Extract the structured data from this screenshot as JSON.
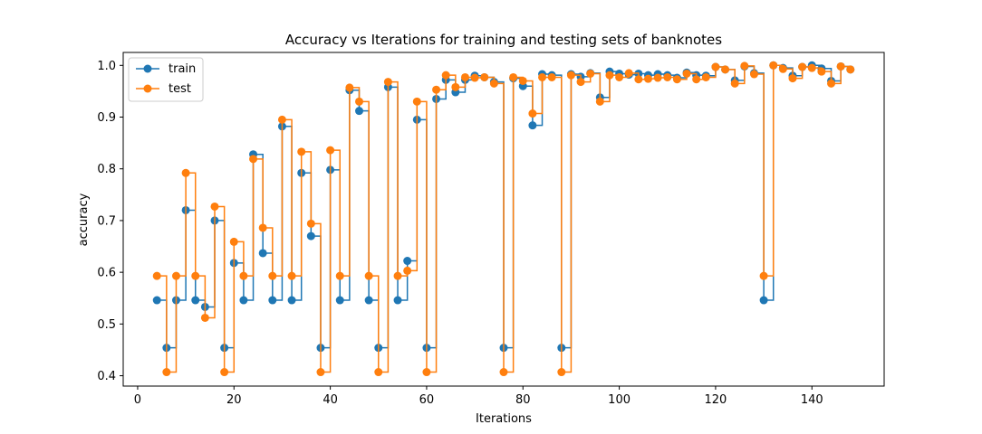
{
  "chart_data": {
    "type": "line",
    "step": "post",
    "title": "Accuracy vs Iterations for training and testing sets of banknotes",
    "xlabel": "Iterations",
    "ylabel": "accuracy",
    "xlim": [
      -3,
      155
    ],
    "ylim": [
      0.38,
      1.025
    ],
    "xticks": [
      0,
      20,
      40,
      60,
      80,
      100,
      120,
      140
    ],
    "yticks": [
      0.4,
      0.5,
      0.6,
      0.7,
      0.8,
      0.9,
      1.0
    ],
    "ytick_labels": [
      "0.4",
      "0.5",
      "0.6",
      "0.7",
      "0.8",
      "0.9",
      "1.0"
    ],
    "legend_position": "top-left",
    "grid": false,
    "x": [
      4,
      6,
      8,
      10,
      12,
      14,
      16,
      18,
      20,
      22,
      24,
      26,
      28,
      30,
      32,
      34,
      36,
      38,
      40,
      42,
      44,
      46,
      48,
      50,
      52,
      54,
      56,
      58,
      60,
      62,
      64,
      66,
      68,
      70,
      72,
      74,
      76,
      78,
      80,
      82,
      84,
      86,
      88,
      90,
      92,
      94,
      96,
      98,
      100,
      102,
      104,
      106,
      108,
      110,
      112,
      114,
      116,
      118,
      120,
      122,
      124,
      126,
      128,
      130,
      132,
      134,
      136,
      138,
      140,
      142,
      144,
      146,
      148
    ],
    "series": [
      {
        "name": "train",
        "color": "#1f77b4",
        "values": [
          0.546,
          0.454,
          0.546,
          0.72,
          0.546,
          0.533,
          0.7,
          0.454,
          0.618,
          0.546,
          0.828,
          0.637,
          0.546,
          0.882,
          0.546,
          0.792,
          0.67,
          0.454,
          0.798,
          0.546,
          0.952,
          0.912,
          0.546,
          0.454,
          0.958,
          0.546,
          0.622,
          0.895,
          0.454,
          0.935,
          0.972,
          0.948,
          0.972,
          0.98,
          0.977,
          0.968,
          0.454,
          0.975,
          0.96,
          0.884,
          0.983,
          0.981,
          0.454,
          0.983,
          0.978,
          0.985,
          0.938,
          0.988,
          0.984,
          0.982,
          0.984,
          0.981,
          0.983,
          0.981,
          0.976,
          0.986,
          0.981,
          0.98,
          0.997,
          0.992,
          0.971,
          0.998,
          0.985,
          0.546,
          1.0,
          0.995,
          0.98,
          0.997,
          1.0,
          0.994,
          0.97,
          0.998,
          0.992
        ]
      },
      {
        "name": "test",
        "color": "#ff7f0e",
        "values": [
          0.593,
          0.407,
          0.593,
          0.792,
          0.593,
          0.512,
          0.727,
          0.407,
          0.659,
          0.593,
          0.819,
          0.686,
          0.593,
          0.895,
          0.593,
          0.833,
          0.694,
          0.407,
          0.836,
          0.593,
          0.957,
          0.93,
          0.593,
          0.407,
          0.968,
          0.593,
          0.603,
          0.93,
          0.407,
          0.953,
          0.981,
          0.958,
          0.977,
          0.976,
          0.977,
          0.965,
          0.407,
          0.977,
          0.97,
          0.907,
          0.977,
          0.977,
          0.407,
          0.981,
          0.968,
          0.984,
          0.93,
          0.981,
          0.977,
          0.985,
          0.973,
          0.974,
          0.976,
          0.977,
          0.973,
          0.984,
          0.973,
          0.977,
          0.997,
          0.992,
          0.965,
          0.999,
          0.983,
          0.593,
          1.0,
          0.993,
          0.975,
          0.997,
          0.995,
          0.988,
          0.965,
          0.998,
          0.992
        ]
      }
    ]
  }
}
